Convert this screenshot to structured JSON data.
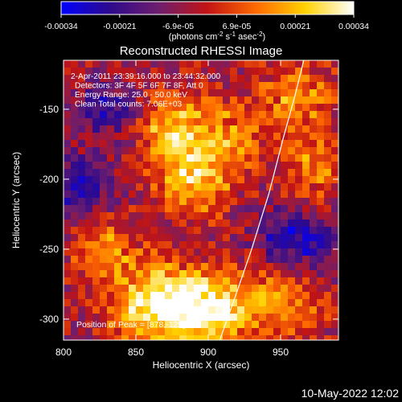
{
  "colorbar": {
    "ticks": [
      "-0.00034",
      "-0.00021",
      "-6.9e-05",
      "6.9e-05",
      "0.00021",
      "0.00034"
    ],
    "units": "(photons cm",
    "units_exp1": "-2",
    "units_mid": " s",
    "units_exp2": "-1",
    "units_mid2": " asec",
    "units_exp3": "-2",
    "units_end": ")",
    "stops": [
      "#0000ff",
      "#2e0a8c",
      "#6e1e6e",
      "#c21414",
      "#ff6a00",
      "#ffd200",
      "#ffffff"
    ]
  },
  "chart_data": {
    "type": "heatmap",
    "title": "Reconstructed RHESSI Image",
    "xlabel": "Heliocentric X (arcsec)",
    "ylabel": "Heliocentric Y (arcsec)",
    "xlim": [
      800,
      990
    ],
    "ylim": [
      -315,
      -115
    ],
    "xticks": [
      "800",
      "850",
      "900",
      "950"
    ],
    "xtick_values": [
      800,
      850,
      900,
      950
    ],
    "yticks": [
      "-150",
      "-200",
      "-250",
      "-300"
    ],
    "ytick_values": [
      -150,
      -200,
      -250,
      -300
    ],
    "colorscale_range": [
      -0.00034,
      0.00034
    ],
    "annotations": [
      "2-Apr-2011 23:39:16.000 to 23:44:32.000",
      "Detectors: 3F 4F 5F 6F 7F 8F, Att 0",
      "Energy Range: 25.0 - 50.0 keV",
      "Clean     Total counts: 7.06E+03"
    ],
    "peak_label": "Position of Peak = [878,-125]",
    "peak": [
      878,
      -125
    ],
    "limb_curve": [
      [
        908,
        -315
      ],
      [
        920,
        -280
      ],
      [
        930,
        -250
      ],
      [
        942,
        -210
      ],
      [
        952,
        -170
      ],
      [
        960,
        -140
      ],
      [
        966,
        -115
      ]
    ],
    "bright_regions": [
      {
        "x": 878,
        "y": -165,
        "intensity": 0.75
      },
      {
        "x": 890,
        "y": -200,
        "intensity": 0.8
      },
      {
        "x": 915,
        "y": -170,
        "intensity": 0.5
      },
      {
        "x": 830,
        "y": -255,
        "intensity": 0.55
      },
      {
        "x": 870,
        "y": -285,
        "intensity": 0.75
      },
      {
        "x": 893,
        "y": -293,
        "intensity": 0.95
      },
      {
        "x": 850,
        "y": -300,
        "intensity": 0.5
      },
      {
        "x": 920,
        "y": -290,
        "intensity": 0.55
      },
      {
        "x": 955,
        "y": -290,
        "intensity": 0.5
      },
      {
        "x": 960,
        "y": -140,
        "intensity": 0.55
      },
      {
        "x": 975,
        "y": -190,
        "intensity": 0.5
      }
    ],
    "dark_regions": [
      {
        "x": 810,
        "y": -205,
        "intensity": 0.7
      },
      {
        "x": 830,
        "y": -150,
        "intensity": 0.5
      },
      {
        "x": 950,
        "y": -240,
        "intensity": 0.5
      },
      {
        "x": 975,
        "y": -245,
        "intensity": 0.5
      }
    ]
  },
  "footer": {
    "timestamp": "10-May-2022 12:02"
  }
}
